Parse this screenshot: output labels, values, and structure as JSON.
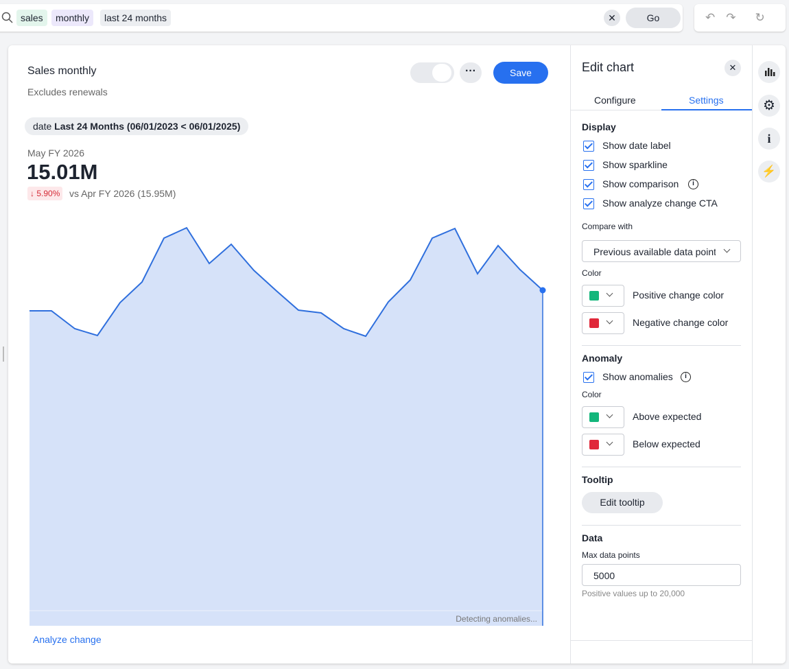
{
  "search": {
    "tokens": [
      "sales",
      "monthly",
      "last 24 months"
    ],
    "go": "Go"
  },
  "card": {
    "title": "Sales monthly",
    "subtitle": "Excludes renewals",
    "save": "Save",
    "filter": {
      "field": "date",
      "value": "Last 24 Months (06/01/2023 < 06/01/2025)"
    },
    "kpi": {
      "period": "May FY 2026",
      "value": "15.01M",
      "change": "5.90%",
      "comparison": "vs Apr FY 2026 (15.95M)"
    },
    "status": "Detecting anomalies...",
    "link": "Analyze change"
  },
  "panel": {
    "title": "Edit chart",
    "tabs": [
      "Configure",
      "Settings"
    ],
    "display": {
      "heading": "Display",
      "options": [
        "Show date label",
        "Show sparkline",
        "Show comparison",
        "Show analyze change CTA"
      ],
      "compare_label": "Compare with",
      "compare_value": "Previous available data point",
      "color_label": "Color",
      "colors": [
        "Positive change color",
        "Negative change color"
      ]
    },
    "anomaly": {
      "heading": "Anomaly",
      "option": "Show anomalies",
      "color_label": "Color",
      "colors": [
        "Above expected",
        "Below expected"
      ]
    },
    "tooltip": {
      "heading": "Tooltip",
      "button": "Edit tooltip"
    },
    "data": {
      "heading": "Data",
      "label": "Max data points",
      "value": "5000",
      "hint": "Positive values up to 20,000"
    }
  }
}
